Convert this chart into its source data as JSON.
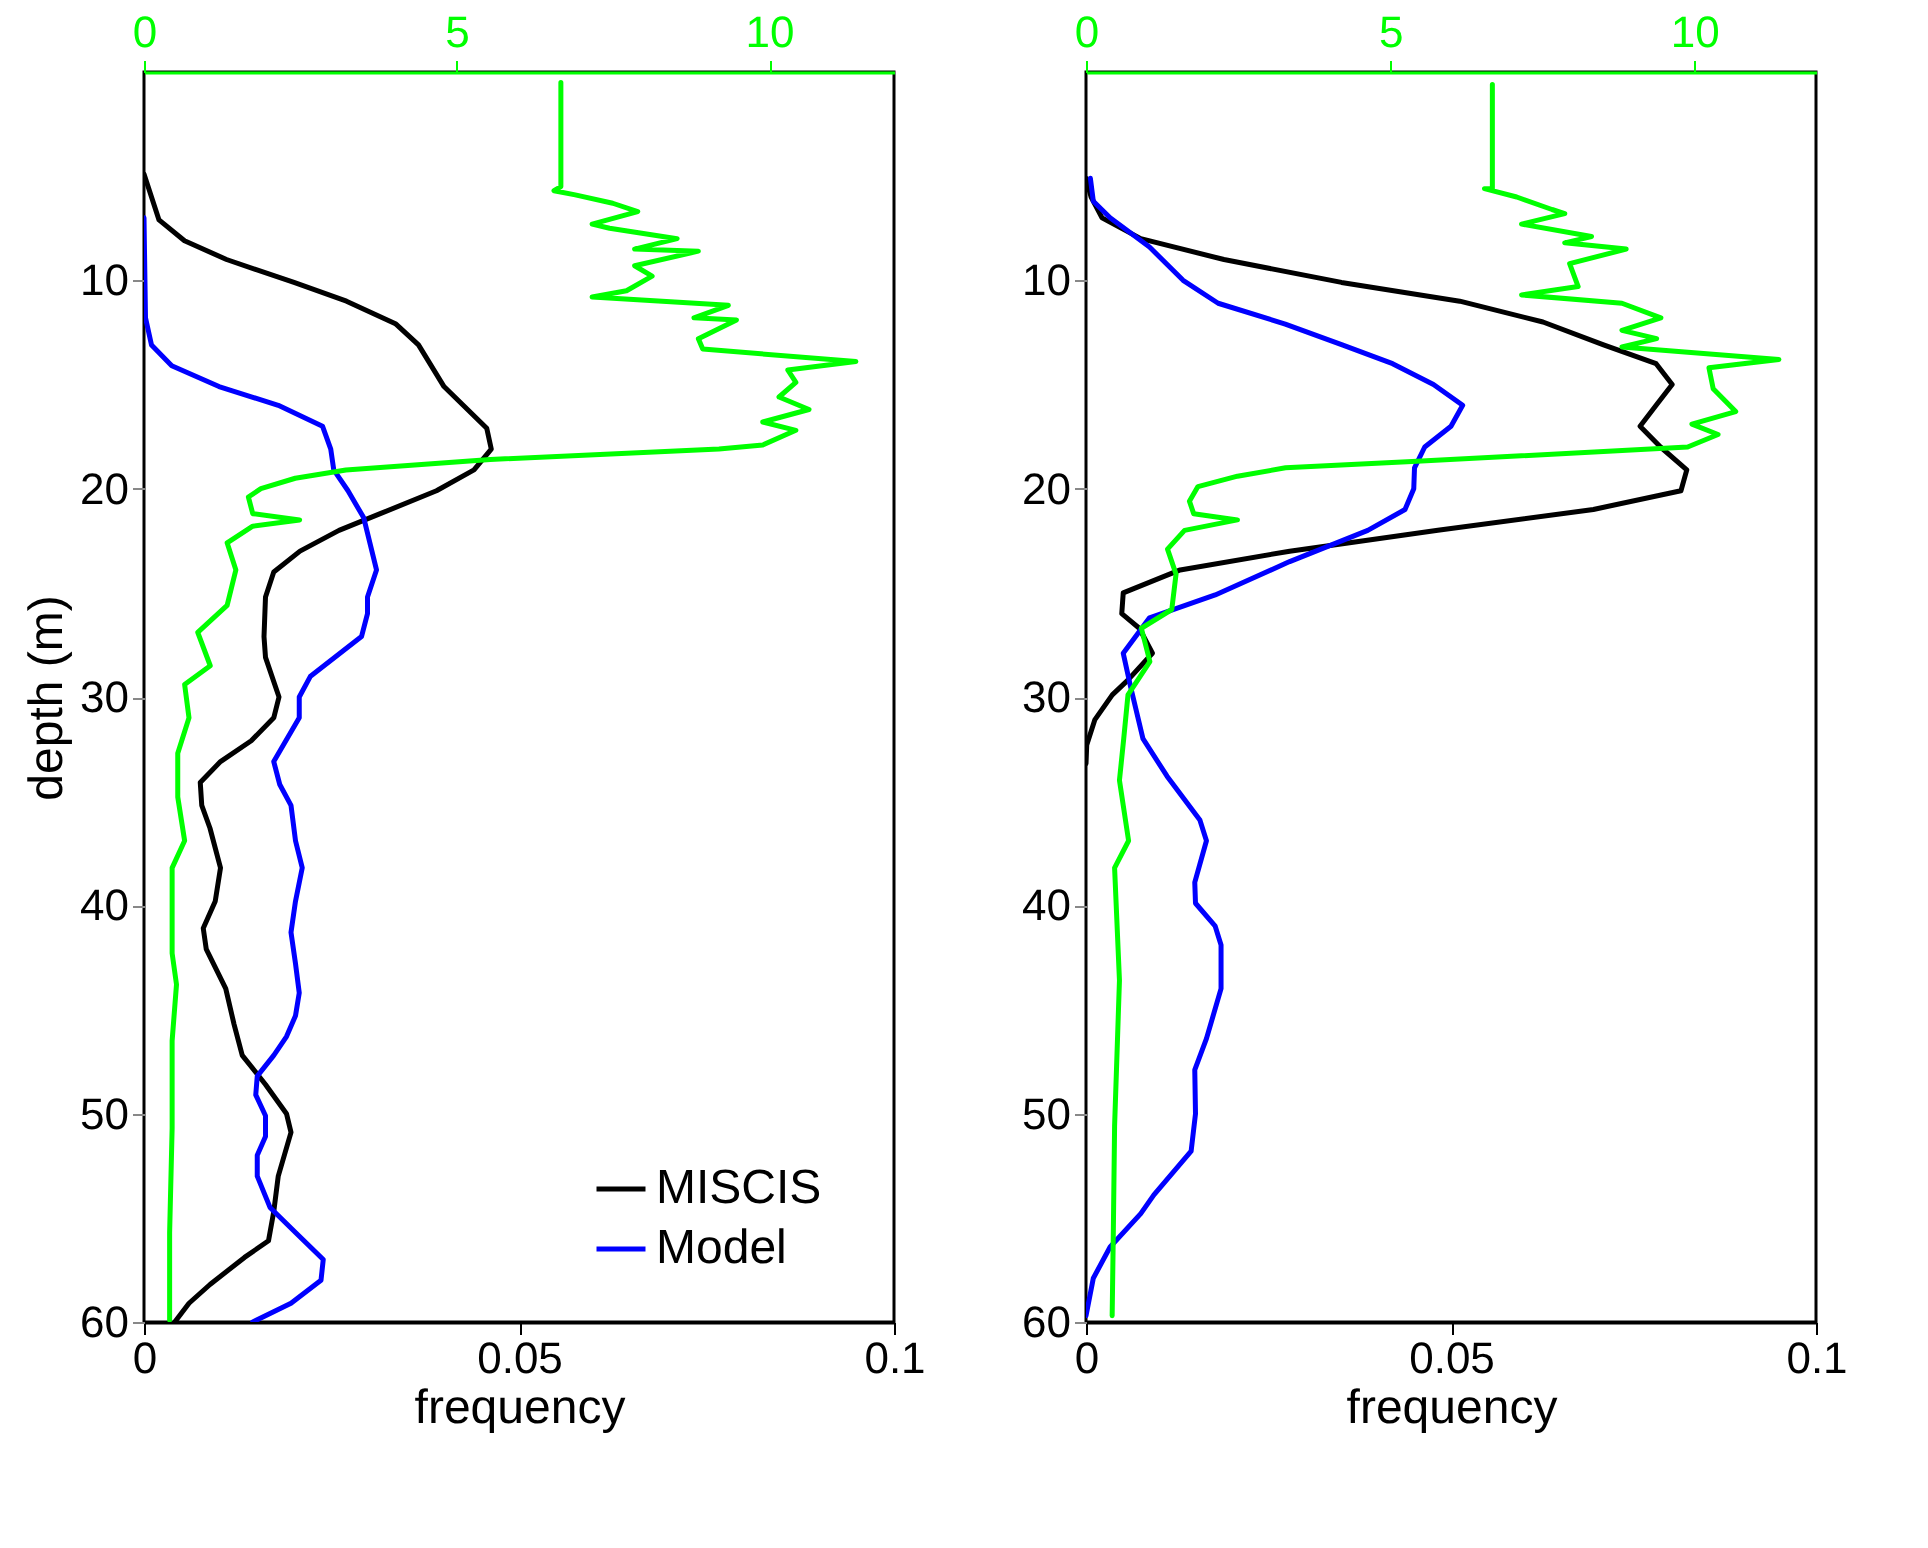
{
  "chart_data": [
    {
      "type": "line",
      "xlabel": "frequency",
      "ylabel": "depth (m)",
      "xlim": [
        0,
        0.1
      ],
      "xticks": [
        0,
        0.05,
        0.1
      ],
      "x2lim": [
        0,
        12
      ],
      "x2ticks": [
        0,
        5,
        10
      ],
      "ylim": [
        60,
        0
      ],
      "yticks": [
        10,
        20,
        30,
        40,
        50,
        60
      ],
      "legend": "bottom right",
      "series": [
        {
          "name": "MISCIS",
          "color": "#000000",
          "x": [
            0,
            0.002,
            0.0054,
            0.011,
            0.02,
            0.027,
            0.0336,
            0.0366,
            0.04,
            0.0457,
            0.0463,
            0.044,
            0.039,
            0.0315,
            0.026,
            0.0208,
            0.0173,
            0.0162,
            0.016,
            0.0162,
            0.018,
            0.0173,
            0.0143,
            0.0102,
            0.0075,
            0.0077,
            0.0088,
            0.0102,
            0.0095,
            0.0079,
            0.0083,
            0.0109,
            0.012,
            0.0131,
            0.0162,
            0.019,
            0.0196,
            0.0179,
            0.0173,
            0.0166,
            0.0134,
            0.0088,
            0.006,
            0.0041
          ],
          "values": [
            4.9,
            7.1,
            8.1,
            9,
            10.1,
            11,
            12.1,
            13.1,
            15.1,
            17.1,
            18.1,
            19.1,
            20.1,
            21.2,
            22,
            23,
            24,
            25.2,
            27.1,
            28.1,
            30,
            31,
            32.1,
            33.1,
            34.1,
            35.2,
            36.3,
            38.2,
            39.8,
            41.1,
            42.1,
            44,
            45.7,
            47.2,
            48.6,
            50,
            50.9,
            53,
            54.7,
            56.1,
            56.9,
            58.2,
            59.1,
            60
          ]
        },
        {
          "name": "Model",
          "color": "#0000ff",
          "x": [
            0,
            0.0002,
            0.001,
            0.0037,
            0.01,
            0.0179,
            0.0238,
            0.0249,
            0.0253,
            0.0272,
            0.0293,
            0.031,
            0.0298,
            0.0298,
            0.029,
            0.0222,
            0.0207,
            0.0207,
            0.0173,
            0.0181,
            0.0196,
            0.0202,
            0.0211,
            0.0202,
            0.0196,
            0.0202,
            0.0207,
            0.0202,
            0.019,
            0.0173,
            0.0151,
            0.0149,
            0.0162,
            0.0162,
            0.0151,
            0.0151,
            0.0168,
            0.0202,
            0.0239,
            0.0236,
            0.0196,
            0.0145
          ],
          "values": [
            7,
            11.8,
            13.1,
            14.1,
            15.1,
            16,
            17,
            18.1,
            19.1,
            20.1,
            21.4,
            23.9,
            25.2,
            26,
            27.1,
            29,
            30,
            31,
            33.1,
            34.2,
            35.2,
            36.9,
            38.2,
            39.8,
            41.3,
            42.8,
            44.2,
            45.3,
            46.3,
            47.2,
            48.2,
            49.1,
            50.1,
            51.1,
            52,
            53,
            54.5,
            55.7,
            57,
            58,
            59.1,
            60
          ]
        },
        {
          "color": "#00ff00",
          "axis": "x2",
          "x": [
            6.67,
            6.67,
            6.56,
            6.9,
            7.5,
            7.9,
            7.17,
            7.45,
            8.53,
            7.85,
            8.87,
            7.85,
            8.13,
            7.72,
            7.17,
            9.35,
            8.8,
            9.48,
            8.87,
            8.94,
            11.39,
            10.3,
            10.43,
            10.16,
            10.64,
            9.9,
            10.43,
            9.9,
            9.2,
            5.54,
            3.23,
            2.42,
            1.87,
            1.67,
            1.74,
            2.49,
            1.74,
            1.33,
            1.47,
            1.33,
            0.86,
            1.06,
            0.65,
            0.72,
            0.54,
            0.54,
            0.65,
            0.45,
            0.45,
            0.52,
            0.45,
            0.45,
            0.41,
            0.41
          ],
          "values": [
            0.5,
            5.5,
            5.7,
            5.9,
            6.3,
            6.7,
            7.3,
            7.5,
            8,
            8.5,
            8.6,
            9.3,
            9.8,
            10.5,
            10.8,
            11.2,
            11.8,
            11.9,
            12.8,
            13.3,
            13.9,
            14.3,
            14.9,
            15.6,
            16.2,
            16.8,
            17.2,
            17.9,
            18.1,
            18.6,
            19.1,
            19.5,
            20,
            20.4,
            21.2,
            21.5,
            21.8,
            22.6,
            23.9,
            25.6,
            26.9,
            28.5,
            29.4,
            31,
            32.7,
            34.8,
            36.9,
            38.2,
            42.3,
            43.8,
            46.5,
            50.7,
            55.7,
            59.9
          ]
        }
      ]
    },
    {
      "type": "line",
      "xlabel": "frequency",
      "xlim": [
        0,
        0.1
      ],
      "xticks": [
        0,
        0.05,
        0.1
      ],
      "x2lim": [
        0,
        12
      ],
      "x2ticks": [
        0,
        5,
        10
      ],
      "ylim": [
        60,
        0
      ],
      "yticks": [
        10,
        20,
        30,
        40,
        50,
        60
      ],
      "series": [
        {
          "name": "MISCIS",
          "color": "#000000",
          "x": [
            0,
            0.0007,
            0.0022,
            0.0075,
            0.0189,
            0.035,
            0.0512,
            0.0626,
            0.0709,
            0.0781,
            0.0803,
            0.0781,
            0.0759,
            0.0787,
            0.0823,
            0.0815,
            0.0695,
            0.0482,
            0.0279,
            0.0129,
            0.0051,
            0.0049,
            0.0073,
            0.0091,
            0.0057,
            0.0036,
            0.0012,
            0.0001,
            0
          ],
          "values": [
            5.1,
            6,
            7,
            8,
            9,
            10.1,
            11,
            12,
            13.1,
            14,
            15,
            16,
            17,
            18,
            19.1,
            20.1,
            21,
            22,
            23,
            23.9,
            25,
            26,
            26.7,
            27.9,
            29.2,
            29.9,
            31.1,
            32.3,
            33.2
          ]
        },
        {
          "name": "Model",
          "color": "#0000ff",
          "x": [
            0.0006,
            0.001,
            0.0033,
            0.0087,
            0.0133,
            0.0181,
            0.0273,
            0.0351,
            0.042,
            0.0476,
            0.0516,
            0.05,
            0.0464,
            0.045,
            0.0449,
            0.0437,
            0.0386,
            0.0279,
            0.0177,
            0.0087,
            0.0051,
            0.0061,
            0.0078,
            0.0111,
            0.0156,
            0.0165,
            0.0149,
            0.015,
            0.0177,
            0.0185,
            0.0185,
            0.0165,
            0.0149,
            0.015,
            0.0144,
            0.0093,
            0.0075,
            0.0033,
            0.001,
            0
          ],
          "values": [
            5.1,
            6.2,
            7,
            8.4,
            10,
            11.1,
            12.1,
            13.1,
            14,
            15,
            16,
            17,
            18,
            19,
            20,
            21,
            22,
            23.5,
            25.1,
            26.2,
            27.9,
            29.5,
            32,
            33.8,
            35.9,
            36.9,
            38.9,
            39.9,
            41,
            41.9,
            44,
            46.4,
            47.9,
            50,
            51.8,
            53.9,
            54.8,
            56.4,
            57.9,
            59.7
          ]
        },
        {
          "color": "#00ff00",
          "axis": "x2",
          "x": [
            6.68,
            6.68,
            6.55,
            7.08,
            7.66,
            7.87,
            7.16,
            8.31,
            7.87,
            8.88,
            7.95,
            8.09,
            7.16,
            8.81,
            9.45,
            8.81,
            9.38,
            8.81,
            11.39,
            10.24,
            10.31,
            10.68,
            9.96,
            10.39,
            9.89,
            5.36,
            3.28,
            2.49,
            1.84,
            1.7,
            1.77,
            2.49,
            1.62,
            1.34,
            1.48,
            1.41,
            0.91,
            1.05,
            0.69,
            0.62,
            0.55,
            0.7,
            0.47,
            0.55,
            0.47,
            0.45,
            0.43
          ],
          "values": [
            0.6,
            5.6,
            5.6,
            6,
            6.6,
            6.8,
            7.3,
            7.9,
            8.2,
            8.5,
            9.2,
            10.3,
            10.7,
            11.1,
            11.8,
            12.4,
            12.8,
            13.2,
            13.8,
            14.2,
            15.2,
            16.3,
            16.9,
            17.4,
            18,
            18.7,
            19,
            19.4,
            19.9,
            20.6,
            21.2,
            21.5,
            22,
            22.9,
            24.1,
            25.8,
            26.7,
            28.3,
            29.9,
            32,
            34,
            36.9,
            38.2,
            43.6,
            50.6,
            55.5,
            59.7
          ]
        }
      ]
    }
  ]
}
